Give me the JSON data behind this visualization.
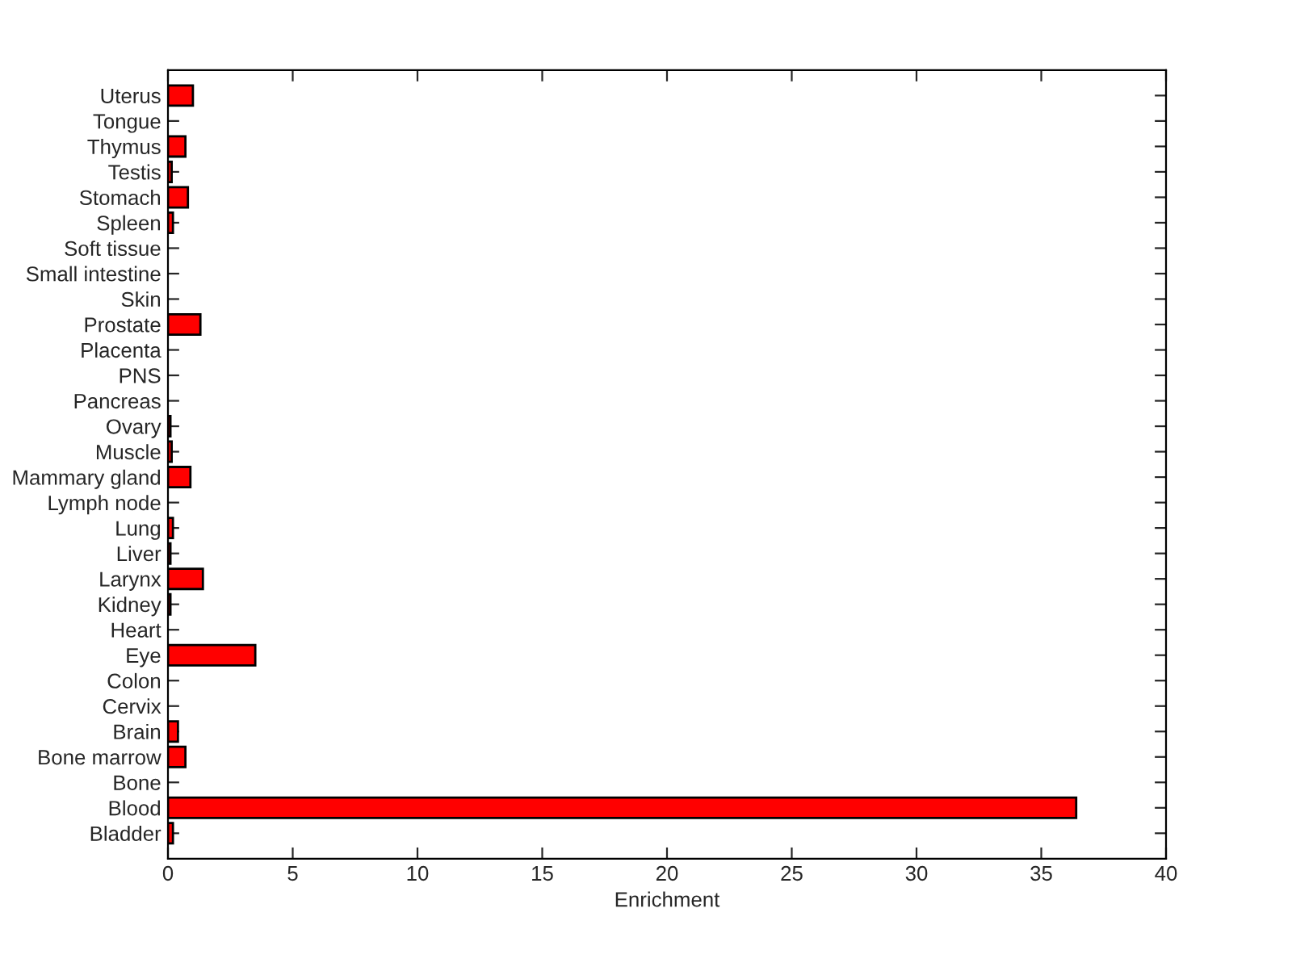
{
  "chart_data": {
    "type": "bar",
    "orientation": "horizontal",
    "xlabel": "Enrichment",
    "categories": [
      "Uterus",
      "Tongue",
      "Thymus",
      "Testis",
      "Stomach",
      "Spleen",
      "Soft tissue",
      "Small intestine",
      "Skin",
      "Prostate",
      "Placenta",
      "PNS",
      "Pancreas",
      "Ovary",
      "Muscle",
      "Mammary gland",
      "Lymph node",
      "Lung",
      "Liver",
      "Larynx",
      "Kidney",
      "Heart",
      "Eye",
      "Colon",
      "Cervix",
      "Brain",
      "Bone marrow",
      "Bone",
      "Blood",
      "Bladder"
    ],
    "values": [
      1.0,
      0,
      0.7,
      0.15,
      0.8,
      0.2,
      0,
      0,
      0,
      1.3,
      0,
      0,
      0,
      0.1,
      0.15,
      0.9,
      0,
      0.2,
      0.1,
      1.4,
      0.1,
      0,
      3.5,
      0,
      0,
      0.4,
      0.7,
      0,
      36.4,
      0.2
    ],
    "color": "#ff0000",
    "xlim": [
      0,
      40
    ],
    "xticks": [
      0,
      5,
      10,
      15,
      20,
      25,
      30,
      35,
      40
    ],
    "grid": false
  }
}
